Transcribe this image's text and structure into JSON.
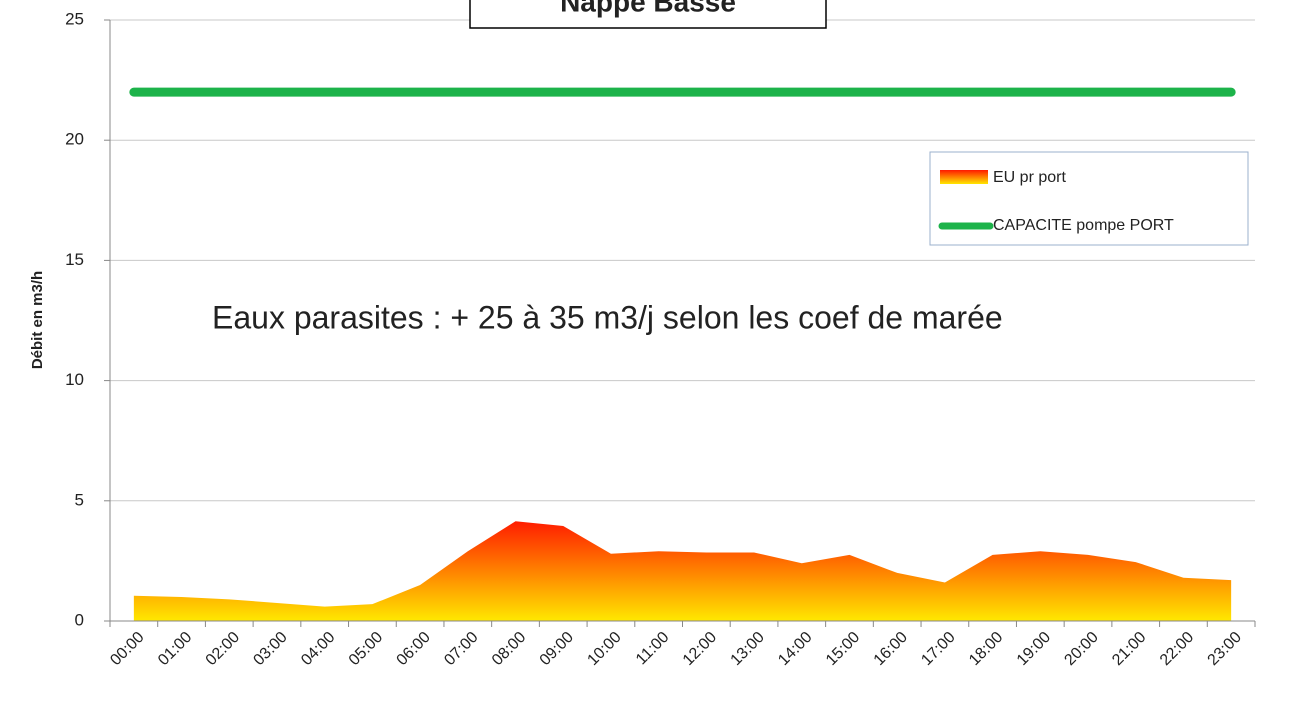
{
  "chart_data": {
    "type": "area",
    "title": "Nappe Basse",
    "ylabel": "Débit en m3/h",
    "annotation": "Eaux parasites : + 25 à 35 m3/j selon les  coef de marée",
    "categories": [
      "00:00",
      "01:00",
      "02:00",
      "03:00",
      "04:00",
      "05:00",
      "06:00",
      "07:00",
      "08:00",
      "09:00",
      "10:00",
      "11:00",
      "12:00",
      "13:00",
      "14:00",
      "15:00",
      "16:00",
      "17:00",
      "18:00",
      "19:00",
      "20:00",
      "21:00",
      "22:00",
      "23:00"
    ],
    "series": [
      {
        "name": "EU pr port",
        "type": "area",
        "colors": [
          "#ff1a00",
          "#ffe800"
        ],
        "values": [
          1.05,
          1.0,
          0.9,
          0.75,
          0.6,
          0.7,
          1.5,
          2.9,
          4.15,
          3.95,
          2.8,
          2.9,
          2.85,
          2.85,
          2.4,
          2.75,
          2.0,
          1.6,
          2.75,
          2.9,
          2.75,
          2.45,
          1.8,
          1.7
        ]
      },
      {
        "name": "CAPACITE pompe PORT",
        "type": "line",
        "color": "#1db34a",
        "values": [
          22,
          22,
          22,
          22,
          22,
          22,
          22,
          22,
          22,
          22,
          22,
          22,
          22,
          22,
          22,
          22,
          22,
          22,
          22,
          22,
          22,
          22,
          22,
          22
        ]
      }
    ],
    "ylim": [
      0,
      25
    ],
    "yticks": [
      0,
      5,
      10,
      15,
      20,
      25
    ],
    "grid": true,
    "legend": "upper right"
  }
}
